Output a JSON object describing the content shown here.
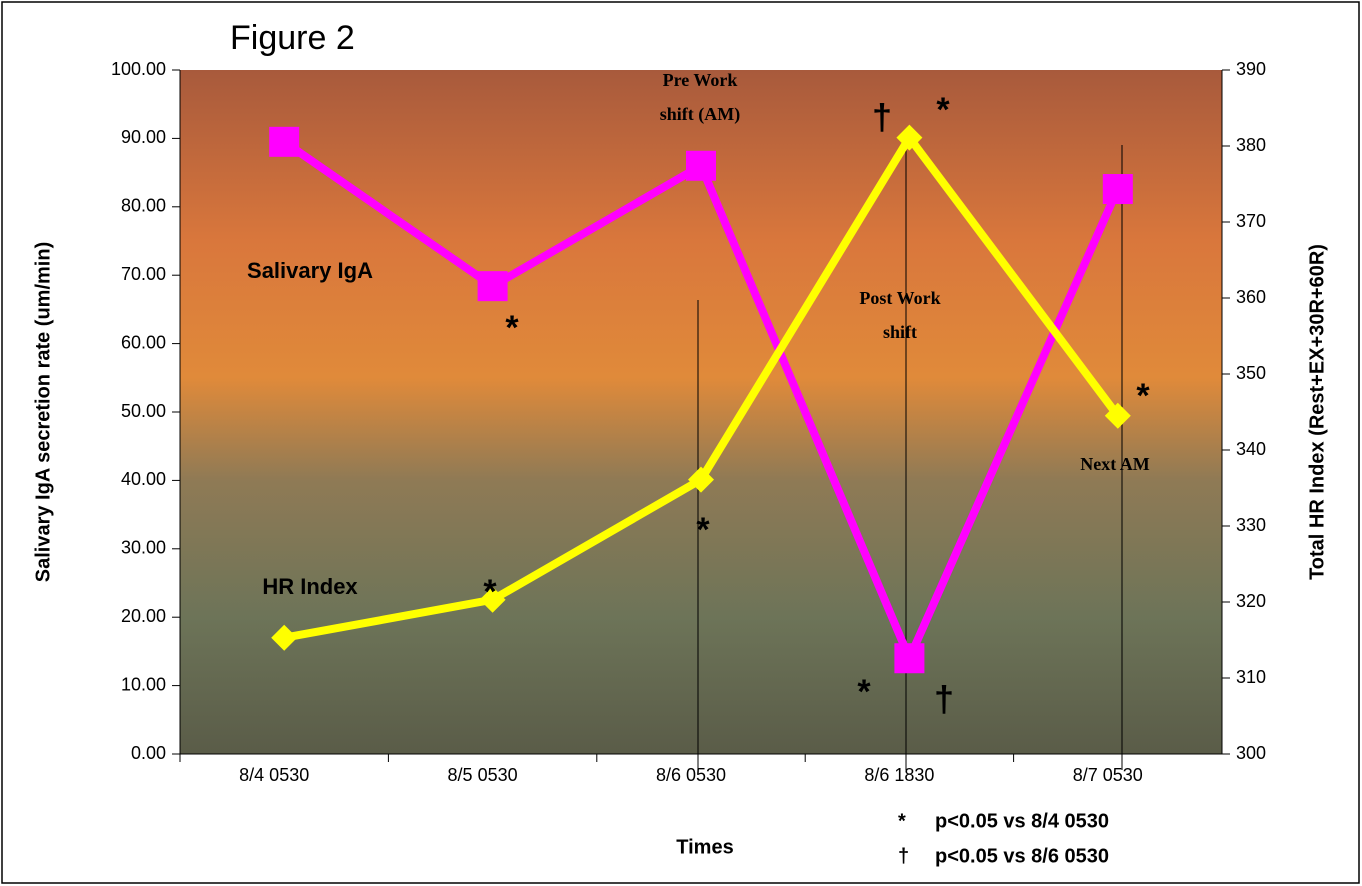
{
  "chart_data": {
    "type": "line",
    "title": "Figure 2",
    "x_label": "Times",
    "y_label": "Salivary IgA secretion rate (um/min)",
    "y2_label": "Total HR Index (Rest+EX+30R+60R)",
    "categories": [
      "8/4 0530",
      "8/5 0530",
      "8/6 0530",
      "8/6 1830",
      "8/7 0530"
    ],
    "series": [
      {
        "name": "Salivary IgA",
        "color": "#ff00ff",
        "marker": "square",
        "values": [
          89.5,
          68.4,
          86.0,
          14.0,
          82.6
        ]
      },
      {
        "name": "HR Index",
        "color": "#ffff00",
        "marker": "diamond",
        "axis": "y2",
        "values": [
          315.3,
          320.3,
          336.1,
          381.1,
          344.5
        ]
      }
    ],
    "ylim": [
      0,
      100
    ],
    "yticks": [
      {
        "value": 0,
        "label": "0.00"
      },
      {
        "value": 10,
        "label": "10.00"
      },
      {
        "value": 20,
        "label": "20.00"
      },
      {
        "value": 30,
        "label": "30.00"
      },
      {
        "value": 40,
        "label": "40.00"
      },
      {
        "value": 50,
        "label": "50.00"
      },
      {
        "value": 60,
        "label": "60.00"
      },
      {
        "value": 70,
        "label": "70.00"
      },
      {
        "value": 80,
        "label": "80.00"
      },
      {
        "value": 90,
        "label": "90.00"
      },
      {
        "value": 100,
        "label": "100.00"
      }
    ],
    "y2lim": [
      300,
      390
    ],
    "y2ticks": [
      300,
      310,
      320,
      330,
      340,
      350,
      360,
      370,
      380,
      390
    ],
    "grid": false,
    "annotations": [
      {
        "text": "Pre Work",
        "color": "#ffff00"
      },
      {
        "text": "shift (AM)",
        "color": "#ffff00"
      },
      {
        "text": "Post Work",
        "color": "#ffff00"
      },
      {
        "text": "shift",
        "color": "#ffff00"
      },
      {
        "text": "Next AM",
        "color": "#ffff00"
      },
      {
        "text": "*",
        "color": "#ff00ff"
      },
      {
        "text": "*",
        "color": "#ffff00"
      },
      {
        "text": "*",
        "color": "#ffff00"
      },
      {
        "text": "†",
        "color": "#ffff00"
      },
      {
        "text": "*",
        "color": "#ffff00"
      },
      {
        "text": "*",
        "color": "#ff00ff"
      },
      {
        "text": "†",
        "color": "#ff00ff"
      },
      {
        "text": "*",
        "color": "#ffff00"
      }
    ],
    "footnotes": [
      "*",
      "p<0.05 vs 8/4 0530",
      "†",
      "p<0.05 vs 8/6 0530"
    ]
  }
}
